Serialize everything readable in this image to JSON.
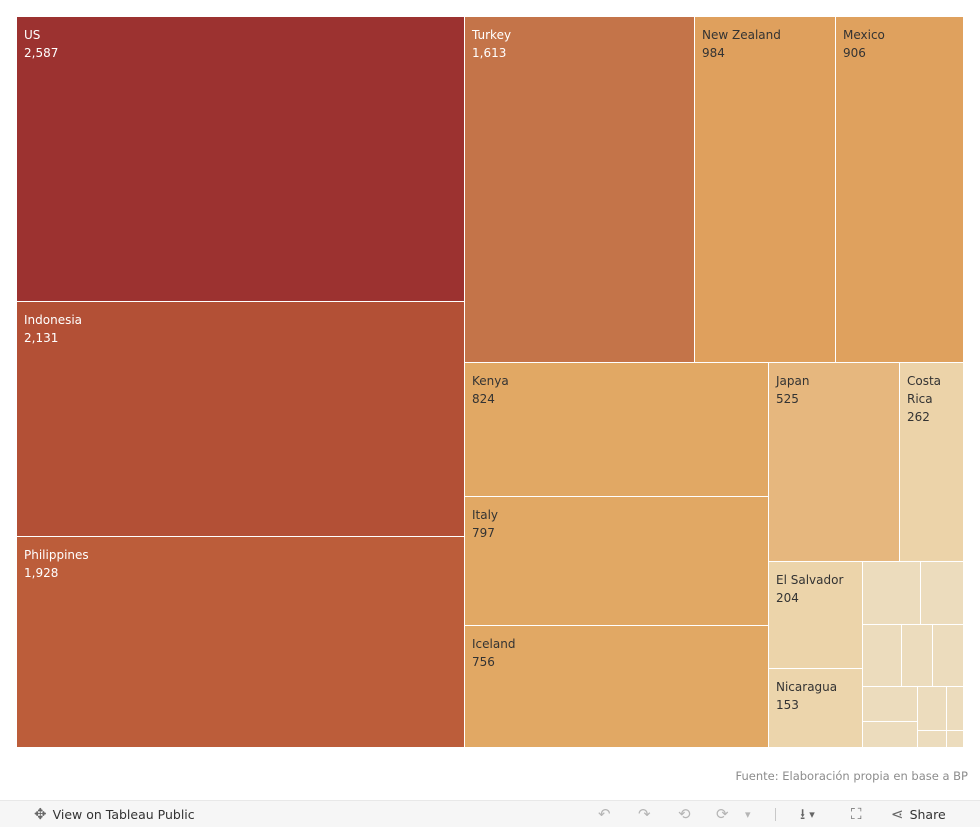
{
  "chart_data": {
    "type": "treemap",
    "title": "",
    "items": [
      {
        "label": "US",
        "value": 2587,
        "color": "#9c3230",
        "text_color": "#ffffff"
      },
      {
        "label": "Indonesia",
        "value": 2131,
        "color": "#b35036",
        "text_color": "#ffffff"
      },
      {
        "label": "Philippines",
        "value": 1928,
        "color": "#bc5d3a",
        "text_color": "#ffffff"
      },
      {
        "label": "Turkey",
        "value": 1613,
        "color": "#c47449",
        "text_color": "#ffffff"
      },
      {
        "label": "New Zealand",
        "value": 984,
        "color": "#dfa05d",
        "text_color": "#333333"
      },
      {
        "label": "Mexico",
        "value": 906,
        "color": "#dfa15e",
        "text_color": "#333333"
      },
      {
        "label": "Kenya",
        "value": 824,
        "color": "#e1a864",
        "text_color": "#333333"
      },
      {
        "label": "Italy",
        "value": 797,
        "color": "#e1a864",
        "text_color": "#333333"
      },
      {
        "label": "Iceland",
        "value": 756,
        "color": "#e1a864",
        "text_color": "#333333"
      },
      {
        "label": "Japan",
        "value": 525,
        "color": "#e6b77e",
        "text_color": "#333333"
      },
      {
        "label": "Costa Rica",
        "value": 262,
        "color": "#ecd3a9",
        "text_color": "#333333"
      },
      {
        "label": "El Salvador",
        "value": 204,
        "color": "#ecd4aa",
        "text_color": "#333333"
      },
      {
        "label": "Nicaragua",
        "value": 153,
        "color": "#ecd5ac",
        "text_color": "#333333"
      }
    ],
    "unlabeled_small_tile_color": "#ecdcbd"
  },
  "footer": {
    "source": "Fuente: Elaboración propia en base a BP"
  },
  "toolbar": {
    "view_label": "View on Tableau Public",
    "share_label": "Share"
  },
  "icons": {
    "tableau": "✥",
    "undo": "↶",
    "redo": "↷",
    "revert": "⟲",
    "forward": "⟳",
    "caret": "▾",
    "download": "⭳",
    "fullscreen": "⛶",
    "share": "⋖"
  }
}
